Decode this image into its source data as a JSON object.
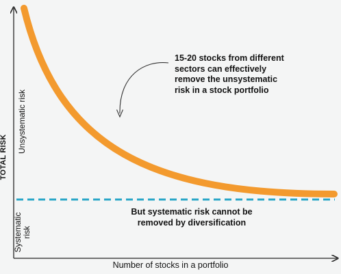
{
  "chart_data": {
    "type": "line",
    "title": "",
    "xlabel": "Number of stocks in a portfolio",
    "ylabel": "TOTAL RISK",
    "grid": false,
    "x_ticks_shown": false,
    "y_ticks_shown": false,
    "series": [
      {
        "role": "total-risk-curve",
        "color": "#f39a2e",
        "style": "solid",
        "shape": "decaying curve approaching the systematic-risk level"
      },
      {
        "role": "systematic-risk-level",
        "color": "#2aa6c8",
        "style": "dashed",
        "shape": "horizontal line"
      }
    ],
    "region_labels": {
      "upper": "Unsystematic risk",
      "lower_lines": [
        "Systematic",
        "risk"
      ]
    },
    "annotations": {
      "top_text": "15-20 stocks from different\nsectors can effectively\nremove the unsystematic\nrisk in a stock portfolio",
      "bottom_text": "But systematic risk cannot be\nremoved by diversification"
    },
    "colors": {
      "background": "#f4f5f5",
      "axis": "#222222",
      "curve": "#f39a2e",
      "dashed_line": "#2aa6c8",
      "arrow": "#333333"
    }
  }
}
